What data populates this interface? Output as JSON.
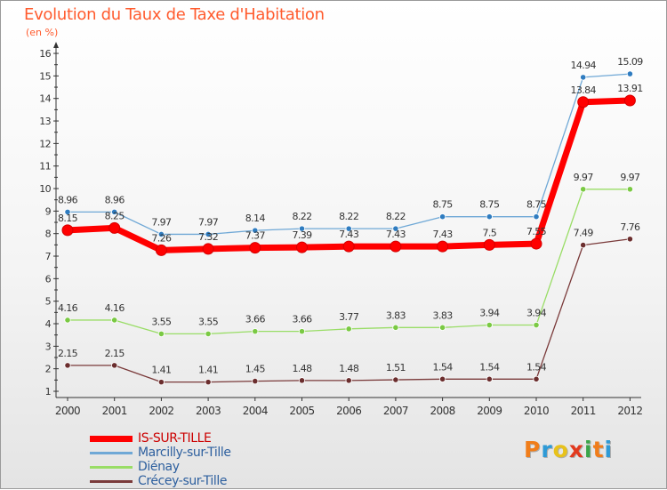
{
  "header": {
    "title": "Evolution du Taux de Taxe d'Habitation",
    "subtitle": "(en %)"
  },
  "logo": {
    "text": "Proxiti",
    "letter_colors": [
      "#f07d1a",
      "#2e9ad6",
      "#e8c21b",
      "#e2391e",
      "#3aa54a",
      "#f07d1a",
      "#2e9ad6"
    ]
  },
  "chart_data": {
    "type": "line",
    "x": [
      "2000",
      "2001",
      "2002",
      "2003",
      "2004",
      "2005",
      "2006",
      "2007",
      "2008",
      "2009",
      "2010",
      "2011",
      "2012"
    ],
    "ylim": [
      1,
      16
    ],
    "yticks": [
      "1",
      "2",
      "3",
      "4",
      "5",
      "6",
      "7",
      "8",
      "9",
      "10",
      "11",
      "12",
      "13",
      "14",
      "15",
      "16"
    ],
    "grid": false,
    "legend_position": "bottom-left",
    "series": [
      {
        "name": "IS-SUR-TILLE",
        "color": "#ff0000",
        "width": "thick",
        "values": [
          8.15,
          8.25,
          7.26,
          7.32,
          7.37,
          7.39,
          7.43,
          7.43,
          7.43,
          7.5,
          7.55,
          13.84,
          13.91
        ],
        "labels": [
          "8.15",
          "8.25",
          "7.26",
          "7.32",
          "7.37",
          "7.39",
          "7.43",
          "7.43",
          "7.43",
          "7.5",
          "7.55",
          "13.84",
          "13.91"
        ]
      },
      {
        "name": "Marcilly-sur-Tille",
        "color": "#6fa8d6",
        "marker_color": "#2f7cc0",
        "width": "thin",
        "values": [
          8.96,
          8.96,
          7.97,
          7.97,
          8.14,
          8.22,
          8.22,
          8.22,
          8.75,
          8.75,
          8.75,
          14.94,
          15.09
        ],
        "labels": [
          "8.96",
          "8.96",
          "7.97",
          "7.97",
          "8.14",
          "8.22",
          "8.22",
          "8.22",
          "8.75",
          "8.75",
          "8.75",
          "14.94",
          "15.09"
        ]
      },
      {
        "name": "Diénay",
        "color": "#99dd66",
        "marker_color": "#7ac943",
        "width": "thin",
        "values": [
          4.16,
          4.16,
          3.55,
          3.55,
          3.66,
          3.66,
          3.77,
          3.83,
          3.83,
          3.94,
          3.94,
          9.97,
          9.97
        ],
        "labels": [
          "4.16",
          "4.16",
          "3.55",
          "3.55",
          "3.66",
          "3.66",
          "3.77",
          "3.83",
          "3.83",
          "3.94",
          "3.94",
          "9.97",
          "9.97"
        ]
      },
      {
        "name": "Crécey-sur-Tille",
        "color": "#7a3a3a",
        "marker_color": "#6b2e2e",
        "width": "thin",
        "values": [
          2.15,
          2.15,
          1.41,
          1.41,
          1.45,
          1.48,
          1.48,
          1.51,
          1.54,
          1.54,
          1.54,
          7.49,
          7.76
        ],
        "labels": [
          "2.15",
          "2.15",
          "1.41",
          "1.41",
          "1.45",
          "1.48",
          "1.48",
          "1.51",
          "1.54",
          "1.54",
          "1.54",
          "7.49",
          "7.76"
        ]
      }
    ]
  }
}
